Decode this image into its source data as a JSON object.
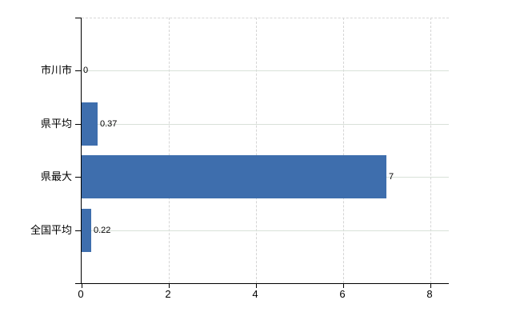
{
  "chart_data": {
    "type": "bar",
    "orientation": "horizontal",
    "title": "",
    "xlabel": "",
    "ylabel": "",
    "categories": [
      "市川市",
      "県平均",
      "県最大",
      "全国平均"
    ],
    "values": [
      0,
      0.37,
      7,
      0.22
    ],
    "value_labels": [
      "0",
      "0.37",
      "7",
      "0.22"
    ],
    "x_ticks": [
      0,
      2,
      4,
      6,
      8
    ],
    "x_tick_labels": [
      "0",
      "2",
      "4",
      "6",
      "8"
    ],
    "xlim": [
      0,
      8.43
    ],
    "legend": "none",
    "grid": {
      "horizontal": "solid",
      "vertical": "dashed",
      "top_border": "dashed"
    },
    "colors": {
      "bar": "#3e6ead",
      "axis": "#000000",
      "horizontal_grid": "#d9e1d9",
      "vertical_grid": "#d5d5d5",
      "label_text": "#000000",
      "background": "#ffffff"
    }
  }
}
